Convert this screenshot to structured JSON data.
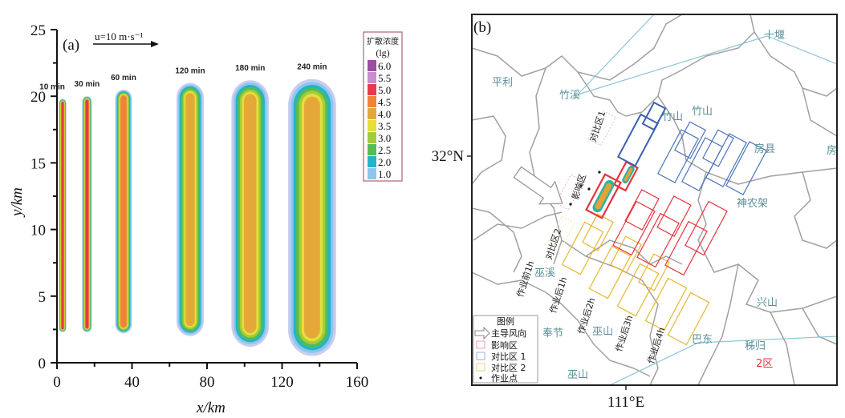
{
  "chart_data": [
    {
      "type": "contour",
      "panel_label": "(a)",
      "wind_label": "u=10 m·s⁻¹",
      "xlabel": "x/km",
      "ylabel": "y/km",
      "xlim": [
        0,
        160
      ],
      "ylim": [
        0,
        25
      ],
      "xticks": [
        0,
        40,
        80,
        120,
        160
      ],
      "yticks": [
        0,
        5,
        10,
        15,
        20,
        25
      ],
      "legend": {
        "title": "扩散浓度",
        "unit": "(lg)",
        "levels": [
          {
            "label": "6.0",
            "color": "#9b4da0"
          },
          {
            "label": "5.5",
            "color": "#c98ccc"
          },
          {
            "label": "5.0",
            "color": "#e53b48"
          },
          {
            "label": "4.5",
            "color": "#f0823a"
          },
          {
            "label": "4.0",
            "color": "#e4a838"
          },
          {
            "label": "3.5",
            "color": "#e5df3a"
          },
          {
            "label": "3.0",
            "color": "#a3cc3a"
          },
          {
            "label": "2.5",
            "color": "#55bb55"
          },
          {
            "label": "2.0",
            "color": "#22b5c8"
          },
          {
            "label": "1.0",
            "color": "#8ec5ee"
          }
        ]
      },
      "plumes": [
        {
          "label": "10 min",
          "x_center": 3,
          "half_width": 2,
          "y_min": 2.3,
          "y_max": 19.8,
          "max_level": 5.0
        },
        {
          "label": "30 min",
          "x_center": 16,
          "half_width": 2.6,
          "y_min": 2.3,
          "y_max": 20.0,
          "max_level": 5.0
        },
        {
          "label": "60 min",
          "x_center": 35.5,
          "half_width": 4.5,
          "y_min": 2.2,
          "y_max": 20.5,
          "max_level": 4.5
        },
        {
          "label": "120 min",
          "x_center": 71,
          "half_width": 7.3,
          "y_min": 2.0,
          "y_max": 21.0,
          "max_level": 4.0
        },
        {
          "label": "180 min",
          "x_center": 103,
          "half_width": 10,
          "y_min": 1.2,
          "y_max": 21.2,
          "max_level": 4.0
        },
        {
          "label": "240 min",
          "x_center": 136,
          "half_width": 12.8,
          "y_min": 0.5,
          "y_max": 21.3,
          "max_level": 4.0
        }
      ]
    }
  ],
  "map": {
    "panel_label": "(b)",
    "lat_label": "32°N",
    "lon_label": "111°E",
    "places": [
      "平利",
      "竹溪",
      "竹山",
      "竹山",
      "十堰",
      "房县",
      "房",
      "神农架",
      "巫溪",
      "奉节",
      "巫山",
      "巫山",
      "兴山",
      "巴东",
      "秭归"
    ],
    "region_label": "2区",
    "zone_labels": [
      "对比区1",
      "影响区",
      "对比区2"
    ],
    "time_labels": [
      "作业前1h",
      "作业后1h",
      "作业后2h",
      "作业后3h",
      "作业后4h"
    ],
    "legend": {
      "title": "图例",
      "items": [
        "主导风向",
        "影响区",
        "对比区 1",
        "对比区 2",
        "作业点"
      ]
    },
    "colors": {
      "influence": "#e8323c",
      "compare1": "#4a74c0",
      "compare2": "#e6b830",
      "boundary": "#9a9a9a",
      "road": "#8cc4d8",
      "place": "#5a8f9a"
    }
  }
}
